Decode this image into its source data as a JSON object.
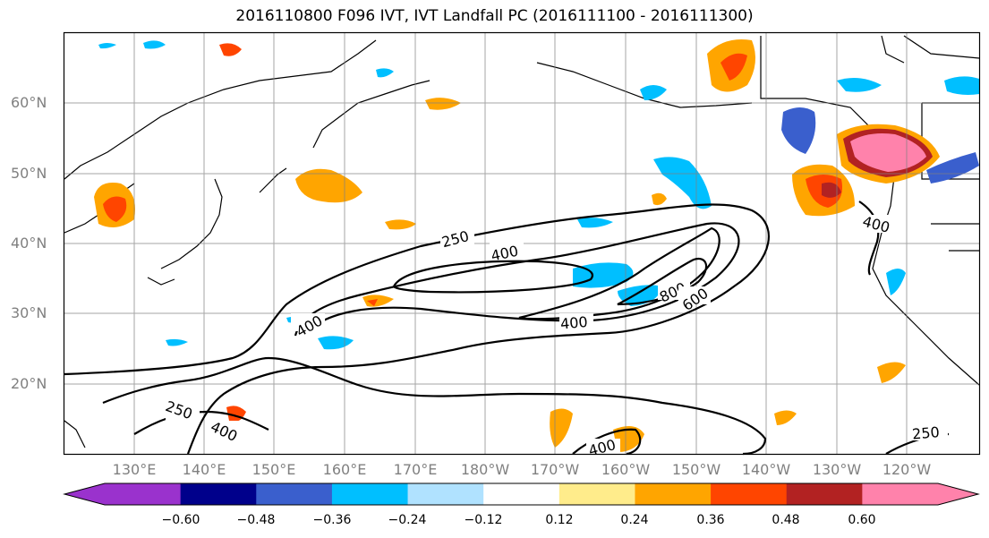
{
  "title": "2016110800 F096 IVT, IVT Landfall PC (2016111100 - 2016111300)",
  "lat_labels": [
    "60°N",
    "50°N",
    "40°N",
    "30°N",
    "20°N"
  ],
  "lon_labels": [
    "130°E",
    "140°E",
    "150°E",
    "160°E",
    "170°E",
    "180°W",
    "170°W",
    "160°W",
    "150°W",
    "140°W",
    "130°W",
    "120°W"
  ],
  "contour_labels": [
    "250",
    "400",
    "800",
    "600",
    "400",
    "400",
    "250",
    "400",
    "400",
    "400",
    "250"
  ],
  "colorbar": {
    "ticks": [
      "−0.60",
      "−0.48",
      "−0.36",
      "−0.24",
      "−0.12",
      "0.12",
      "0.24",
      "0.36",
      "0.48",
      "0.60"
    ],
    "colors": [
      "#9a32cd",
      "#00008b",
      "#3a5fcd",
      "#00bfff",
      "#b0e2ff",
      "#ffffff",
      "#ffec8b",
      "#ffa500",
      "#ff4500",
      "#b22222",
      "#ff82ab"
    ]
  }
}
